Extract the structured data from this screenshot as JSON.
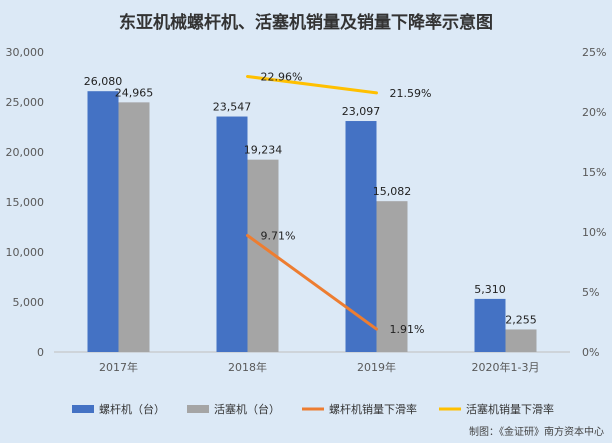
{
  "chart_data": {
    "type": "bar",
    "title": "东亚机械螺杆机、活塞机销量及销量下降率示意图",
    "categories": [
      "2017年",
      "2018年",
      "2019年",
      "2020年1-3月"
    ],
    "y_left": {
      "ticks": [
        "0",
        "5,000",
        "10,000",
        "15,000",
        "20,000",
        "25,000",
        "30,000"
      ],
      "ylim": [
        0,
        30000
      ]
    },
    "y_right": {
      "ticks": [
        "0%",
        "5%",
        "10%",
        "15%",
        "20%",
        "25%"
      ],
      "ylim": [
        0,
        25
      ]
    },
    "bar_series": [
      {
        "name": "螺杆机（台）",
        "color": "#4472c4",
        "values": [
          26080,
          23547,
          23097,
          5310
        ],
        "labels": [
          "26,080",
          "23,547",
          "23,097",
          "5,310"
        ]
      },
      {
        "name": "活塞机（台）",
        "color": "#a5a5a5",
        "values": [
          24965,
          19234,
          15082,
          2255
        ],
        "labels": [
          "24,965",
          "19,234",
          "15,082",
          "2,255"
        ]
      }
    ],
    "line_series": [
      {
        "name": "螺杆机销量下滑率",
        "color": "#ed7d31",
        "values": [
          null,
          9.71,
          1.91,
          null
        ],
        "labels": [
          "",
          "9.71%",
          "1.91%",
          ""
        ]
      },
      {
        "name": "活塞机销量下滑率",
        "color": "#ffc000",
        "values": [
          null,
          22.96,
          21.59,
          null
        ],
        "labels": [
          "",
          "22.96%",
          "21.59%",
          ""
        ]
      }
    ],
    "legend_position": "bottom",
    "grid": false
  },
  "source": "制图：《金证研》南方资本中心"
}
